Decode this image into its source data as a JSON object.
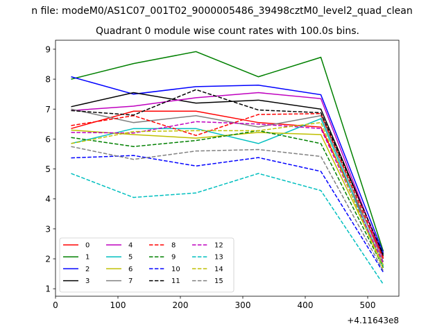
{
  "chart_data": {
    "type": "line",
    "suptitle": "n file: modeM0/AS1C07_001T02_9000005486_39498cztM0_level2_quad_clean",
    "title": "Quadrant 0 module wise count rates with 100.0s bins.",
    "xlabel": "",
    "ylabel": "",
    "x_offset_label": "+4.11643e8",
    "xlim": [
      0,
      550
    ],
    "ylim": [
      0.75,
      9.3
    ],
    "xticks": [
      0,
      100,
      200,
      300,
      400,
      500
    ],
    "yticks": [
      1,
      2,
      3,
      4,
      5,
      6,
      7,
      8,
      9
    ],
    "x": [
      25,
      125,
      225,
      325,
      425,
      525
    ],
    "legend_position": "lower-left",
    "legend_columns": 4,
    "series": [
      {
        "name": "0",
        "color": "#ff0000",
        "dash": "solid",
        "values": [
          6.35,
          6.93,
          6.93,
          6.55,
          6.4,
          2.05
        ]
      },
      {
        "name": "1",
        "color": "#008000",
        "dash": "solid",
        "values": [
          8.0,
          8.52,
          8.92,
          8.08,
          8.73,
          2.25
        ]
      },
      {
        "name": "2",
        "color": "#0000ff",
        "dash": "solid",
        "values": [
          8.08,
          7.5,
          7.75,
          7.8,
          7.48,
          2.2
        ]
      },
      {
        "name": "3",
        "color": "#000000",
        "dash": "solid",
        "values": [
          7.08,
          7.55,
          7.2,
          7.3,
          7.0,
          2.1
        ]
      },
      {
        "name": "4",
        "color": "#bf00bf",
        "dash": "solid",
        "values": [
          6.95,
          7.1,
          7.38,
          7.55,
          7.35,
          2.0
        ]
      },
      {
        "name": "5",
        "color": "#00bfbf",
        "dash": "solid",
        "values": [
          5.85,
          6.35,
          6.35,
          5.85,
          6.68,
          1.75
        ]
      },
      {
        "name": "6",
        "color": "#bfbf00",
        "dash": "solid",
        "values": [
          6.3,
          6.15,
          6.03,
          6.22,
          6.15,
          1.8
        ]
      },
      {
        "name": "7",
        "color": "#808080",
        "dash": "solid",
        "values": [
          7.0,
          6.55,
          6.78,
          6.4,
          6.78,
          1.9
        ]
      },
      {
        "name": "8",
        "color": "#ff0000",
        "dash": "dashed",
        "values": [
          6.45,
          6.78,
          6.12,
          6.82,
          6.85,
          2.0
        ]
      },
      {
        "name": "9",
        "color": "#008000",
        "dash": "dashed",
        "values": [
          6.05,
          5.75,
          5.95,
          6.28,
          5.85,
          1.7
        ]
      },
      {
        "name": "10",
        "color": "#0000ff",
        "dash": "dashed",
        "values": [
          5.37,
          5.45,
          5.1,
          5.38,
          4.92,
          1.55
        ]
      },
      {
        "name": "11",
        "color": "#000000",
        "dash": "dashed",
        "values": [
          6.95,
          6.8,
          7.65,
          6.97,
          6.88,
          2.15
        ]
      },
      {
        "name": "12",
        "color": "#bf00bf",
        "dash": "dashed",
        "values": [
          6.22,
          6.2,
          6.58,
          6.5,
          6.35,
          1.85
        ]
      },
      {
        "name": "13",
        "color": "#00bfbf",
        "dash": "dashed",
        "values": [
          4.85,
          4.05,
          4.2,
          4.85,
          4.28,
          1.15
        ]
      },
      {
        "name": "14",
        "color": "#bfbf00",
        "dash": "dashed",
        "values": [
          5.85,
          6.25,
          6.28,
          6.28,
          6.55,
          1.65
        ]
      },
      {
        "name": "15",
        "color": "#808080",
        "dash": "dashed",
        "values": [
          5.75,
          5.32,
          5.6,
          5.65,
          5.42,
          1.6
        ]
      }
    ]
  }
}
